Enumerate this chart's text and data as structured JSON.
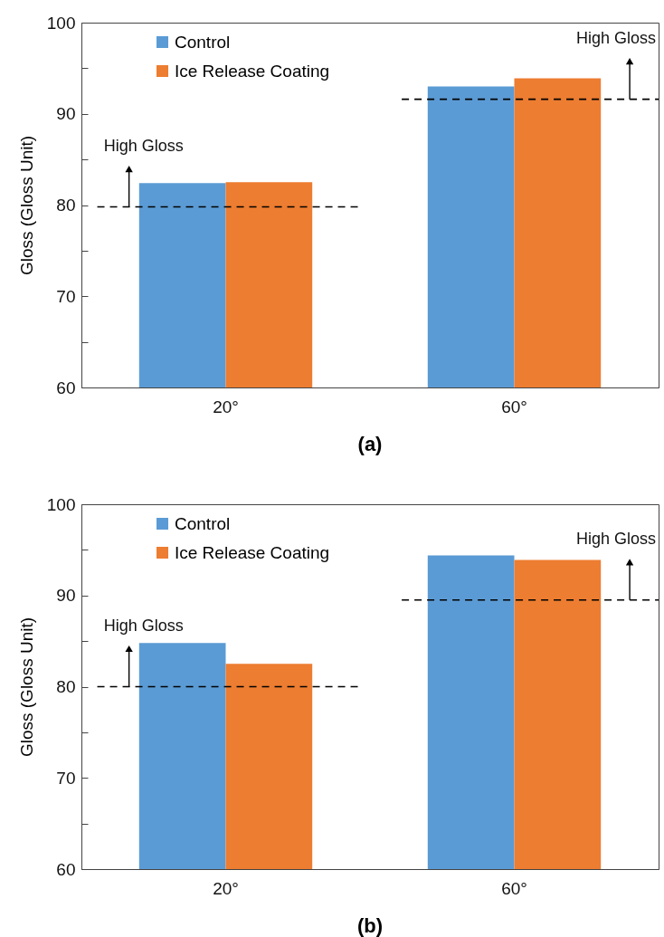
{
  "chart_data": [
    {
      "type": "bar",
      "title": "(a)",
      "ylabel": "Gloss (Gloss Unit)",
      "categories": [
        "20°",
        "60°"
      ],
      "series": [
        {
          "name": "Control",
          "color": "#5b9bd5",
          "values": [
            82.4,
            93.0
          ]
        },
        {
          "name": "Ice Release Coating",
          "color": "#ed7d31",
          "values": [
            82.5,
            93.9
          ]
        }
      ],
      "ylim": [
        60,
        100
      ],
      "yticks": [
        60,
        {
          "value": 65,
          "label": null
        },
        70,
        {
          "value": 75,
          "label": null
        },
        80,
        {
          "value": 85,
          "label": null
        },
        90,
        {
          "value": 95,
          "label": null
        },
        100
      ],
      "legend": "top left",
      "ref_lines": [
        {
          "axis": "y",
          "value": 79.8,
          "label": "High Gloss",
          "line_style": "dashed",
          "color": "#000000"
        },
        {
          "axis": "y",
          "value": 91.6,
          "label": "High Gloss",
          "line_style": "dashed",
          "color": "#000000"
        }
      ]
    },
    {
      "type": "bar",
      "title": "(b)",
      "ylabel": "Gloss (Gloss Unit)",
      "categories": [
        "20°",
        "60°"
      ],
      "series": [
        {
          "name": "Control",
          "color": "#5b9bd5",
          "values": [
            84.8,
            94.4
          ]
        },
        {
          "name": "Ice Release Coating",
          "color": "#ed7d31",
          "values": [
            82.5,
            93.9
          ]
        }
      ],
      "ylim": [
        60,
        100
      ],
      "yticks": [
        60,
        {
          "value": 65,
          "label": null
        },
        70,
        {
          "value": 75,
          "label": null
        },
        80,
        {
          "value": 85,
          "label": null
        },
        90,
        {
          "value": 95,
          "label": null
        },
        100
      ],
      "legend": "top left",
      "ref_lines": [
        {
          "axis": "y",
          "value": 80.0,
          "label": "High Gloss",
          "line_style": "dashed",
          "color": "#000000"
        },
        {
          "axis": "y",
          "value": 89.5,
          "label": "High Gloss",
          "line_style": "dashed",
          "color": "#000000"
        }
      ]
    }
  ]
}
